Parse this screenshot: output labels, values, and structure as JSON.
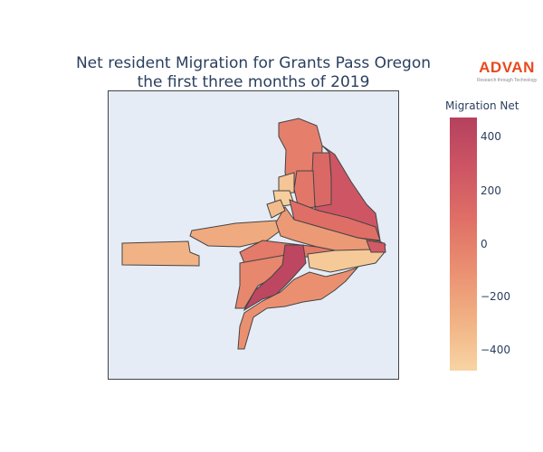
{
  "title_line1": "Net resident Migration for Grants Pass Oregon",
  "title_line2": "the first three months of 2019",
  "logo": {
    "word": "ADVAN",
    "tagline": "Research through Technology"
  },
  "colorbar": {
    "title": "Migration Net",
    "ticks": [
      "400",
      "200",
      "0",
      "−200",
      "−400"
    ],
    "range": [
      -480,
      480
    ],
    "colors": [
      "#f8d4a3",
      "#f1b183",
      "#ea8f71",
      "#df6f66",
      "#cd5564",
      "#b5415e"
    ]
  },
  "chart_data": {
    "type": "choropleth",
    "title": "Net resident Migration for Grants Pass Oregon the first three months of 2019",
    "colorbar_title": "Migration Net",
    "regions": [
      {
        "id": "west-strip",
        "value": -300
      },
      {
        "id": "northwest-band",
        "value": -250
      },
      {
        "id": "north-tall",
        "value": 0
      },
      {
        "id": "north-center-a",
        "value": 150
      },
      {
        "id": "north-center-b",
        "value": 50
      },
      {
        "id": "north-small-a",
        "value": -400
      },
      {
        "id": "north-small-b",
        "value": -450
      },
      {
        "id": "center-east-large",
        "value": 280
      },
      {
        "id": "center-strip",
        "value": 100
      },
      {
        "id": "central",
        "value": -150
      },
      {
        "id": "center-south-a",
        "value": 30
      },
      {
        "id": "south-west",
        "value": -50
      },
      {
        "id": "south-central",
        "value": 420
      },
      {
        "id": "southeast",
        "value": -420
      },
      {
        "id": "east-tip",
        "value": 250
      },
      {
        "id": "south-lobe",
        "value": -100
      },
      {
        "id": "north-west-small",
        "value": -350
      }
    ]
  }
}
